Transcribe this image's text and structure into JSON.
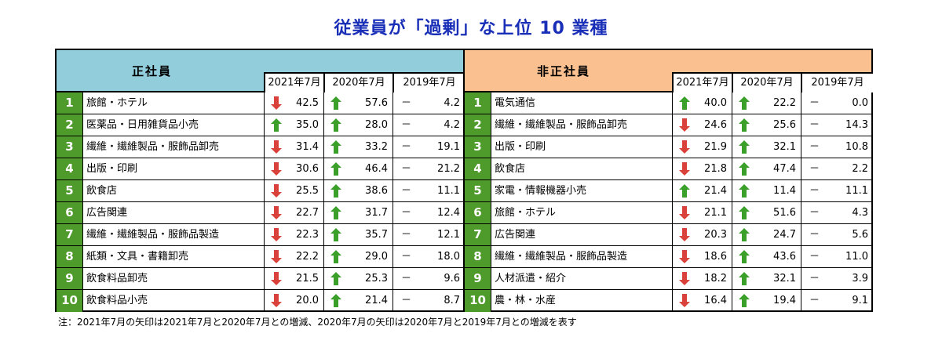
{
  "title": "従業員が「過剰」な上位 10 業種",
  "colors": {
    "title": "#1a2fb8",
    "regular_header": "#92cddc",
    "nonregular_header": "#fac08f",
    "rank_bg": "#4e9a2a",
    "up_arrow": "#3aa02a",
    "down_arrow": "#d9413b"
  },
  "tables": [
    {
      "header": "正社員",
      "years": [
        "2021年7月",
        "2020年7月",
        "2019年7月"
      ],
      "rows": [
        {
          "rank": "1",
          "name": "旅館・ホテル",
          "v2021": "42.5",
          "a2021": "down",
          "v2020": "57.6",
          "a2020": "up",
          "v2019": "4.2"
        },
        {
          "rank": "2",
          "name": "医薬品・日用雑貨品小売",
          "v2021": "35.0",
          "a2021": "up",
          "v2020": "28.0",
          "a2020": "up",
          "v2019": "4.2"
        },
        {
          "rank": "3",
          "name": "繊維・繊維製品・服飾品卸売",
          "v2021": "31.4",
          "a2021": "down",
          "v2020": "33.2",
          "a2020": "up",
          "v2019": "19.1"
        },
        {
          "rank": "4",
          "name": "出版・印刷",
          "v2021": "30.6",
          "a2021": "down",
          "v2020": "46.4",
          "a2020": "up",
          "v2019": "21.2"
        },
        {
          "rank": "5",
          "name": "飲食店",
          "v2021": "25.5",
          "a2021": "down",
          "v2020": "38.6",
          "a2020": "up",
          "v2019": "11.1"
        },
        {
          "rank": "6",
          "name": "広告関連",
          "v2021": "22.7",
          "a2021": "down",
          "v2020": "31.7",
          "a2020": "up",
          "v2019": "12.4"
        },
        {
          "rank": "7",
          "name": "繊維・繊維製品・服飾品製造",
          "v2021": "22.3",
          "a2021": "down",
          "v2020": "35.7",
          "a2020": "up",
          "v2019": "12.1"
        },
        {
          "rank": "8",
          "name": "紙類・文具・書籍卸売",
          "v2021": "22.2",
          "a2021": "down",
          "v2020": "29.0",
          "a2020": "up",
          "v2019": "18.0"
        },
        {
          "rank": "9",
          "name": "飲食料品卸売",
          "v2021": "21.5",
          "a2021": "down",
          "v2020": "25.3",
          "a2020": "up",
          "v2019": "9.6"
        },
        {
          "rank": "10",
          "name": "飲食料品小売",
          "v2021": "20.0",
          "a2021": "down",
          "v2020": "21.4",
          "a2020": "up",
          "v2019": "8.7"
        }
      ]
    },
    {
      "header": "非正社員",
      "years": [
        "2021年7月",
        "2020年7月",
        "2019年7月"
      ],
      "rows": [
        {
          "rank": "1",
          "name": "電気通信",
          "v2021": "40.0",
          "a2021": "up",
          "v2020": "22.2",
          "a2020": "up",
          "v2019": "0.0"
        },
        {
          "rank": "2",
          "name": "繊維・繊維製品・服飾品卸売",
          "v2021": "24.6",
          "a2021": "down",
          "v2020": "25.6",
          "a2020": "up",
          "v2019": "14.3"
        },
        {
          "rank": "3",
          "name": "出版・印刷",
          "v2021": "21.9",
          "a2021": "down",
          "v2020": "32.1",
          "a2020": "up",
          "v2019": "10.8"
        },
        {
          "rank": "4",
          "name": "飲食店",
          "v2021": "21.8",
          "a2021": "down",
          "v2020": "47.4",
          "a2020": "up",
          "v2019": "2.2"
        },
        {
          "rank": "5",
          "name": "家電・情報機器小売",
          "v2021": "21.4",
          "a2021": "up",
          "v2020": "11.4",
          "a2020": "up",
          "v2019": "11.1"
        },
        {
          "rank": "6",
          "name": "旅館・ホテル",
          "v2021": "21.1",
          "a2021": "down",
          "v2020": "51.6",
          "a2020": "up",
          "v2019": "4.3"
        },
        {
          "rank": "7",
          "name": "広告関連",
          "v2021": "20.3",
          "a2021": "down",
          "v2020": "24.7",
          "a2020": "up",
          "v2019": "5.6"
        },
        {
          "rank": "8",
          "name": "繊維・繊維製品・服飾品製造",
          "v2021": "18.6",
          "a2021": "down",
          "v2020": "43.6",
          "a2020": "up",
          "v2019": "11.0"
        },
        {
          "rank": "9",
          "name": "人材派遣・紹介",
          "v2021": "18.2",
          "a2021": "down",
          "v2020": "32.1",
          "a2020": "up",
          "v2019": "3.9"
        },
        {
          "rank": "10",
          "name": "農・林・水産",
          "v2021": "16.4",
          "a2021": "down",
          "v2020": "19.4",
          "a2020": "up",
          "v2019": "9.1"
        }
      ]
    }
  ],
  "dash": "－",
  "note": "注：2021年7月の矢印は2021年7月と2020年7月との増減、2020年7月の矢印は2020年7月と2019年7月との増減を表す"
}
